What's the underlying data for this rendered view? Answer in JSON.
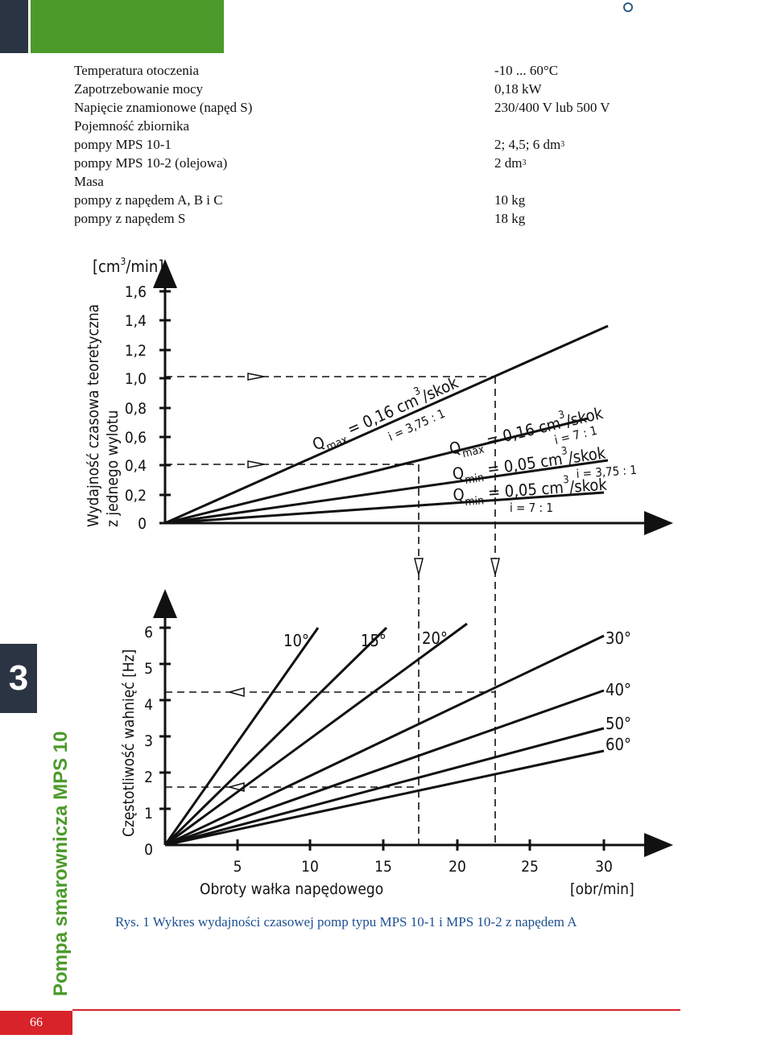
{
  "specs": {
    "rows": [
      {
        "label": "Temperatura otoczenia",
        "value": "-10 ... 60°C"
      },
      {
        "label": "Zapotrzebowanie mocy",
        "value": "0,18 kW"
      },
      {
        "label": "Napięcie znamionowe (napęd S)",
        "value": "230/400 V lub 500 V"
      },
      {
        "label": "Pojemność zbiornika",
        "value": ""
      },
      {
        "label": "pompy MPS 10-1",
        "value": "2;  4,5;  6 dm",
        "sup": "3"
      },
      {
        "label": "pompy MPS 10-2 (olejowa)",
        "value": "2 dm",
        "sup": "3"
      },
      {
        "label": "Masa",
        "value": ""
      },
      {
        "label": "pompy z napędem A, B i C",
        "value": "10 kg"
      },
      {
        "label": "pompy z napędem S",
        "value": "18 kg"
      }
    ]
  },
  "top_chart": {
    "unit": "[cm",
    "unit_sup": "3",
    "unit_end": "/min]",
    "y_label_1": "Wydajność czasowa teoretyczna",
    "y_label_2": "z jednego wylotu",
    "yticks": [
      "0",
      "0,2",
      "0,4",
      "0,6",
      "0,8",
      "1,0",
      "1,2",
      "1,4",
      "1,6"
    ],
    "lines": [
      {
        "symbol": "Q",
        "sub": "max",
        "text": " = 0,16 cm",
        "sup": "3",
        "unit": "/skok",
        "ratio": "i = 3,75 : 1"
      },
      {
        "symbol": "Q",
        "sub": "max",
        "text": " = 0,16 cm",
        "sup": "3",
        "unit": "/skok",
        "ratio": "i = 7 : 1"
      },
      {
        "symbol": "Q",
        "sub": "min",
        "text": " = 0,05 cm",
        "sup": "3",
        "unit": "/skok",
        "ratio": "i = 3,75 : 1"
      },
      {
        "symbol": "Q",
        "sub": "min",
        "text": " = 0,05 cm",
        "sup": "3",
        "unit": "/skok",
        "ratio": "i = 7 : 1"
      }
    ]
  },
  "bottom_chart": {
    "y_label": "Częstotliwość wahnięć  [Hz]",
    "yticks": [
      "0",
      "1",
      "2",
      "3",
      "4",
      "5",
      "6"
    ],
    "xticks": [
      "5",
      "10",
      "15",
      "20",
      "25",
      "30"
    ],
    "x_label": "Obroty wałka napędowego",
    "x_unit": "[obr/min]",
    "angles": [
      "10°",
      "15°",
      "20°",
      "30°",
      "40°",
      "50°",
      "60°"
    ]
  },
  "caption": "Rys. 1 Wykres wydajności czasowej pomp typu MPS 10-1 i MPS 10-2 z napędem A",
  "side": {
    "chapter": "3",
    "title": "Pompa smarownicza MPS 10"
  },
  "page_number": "66"
}
